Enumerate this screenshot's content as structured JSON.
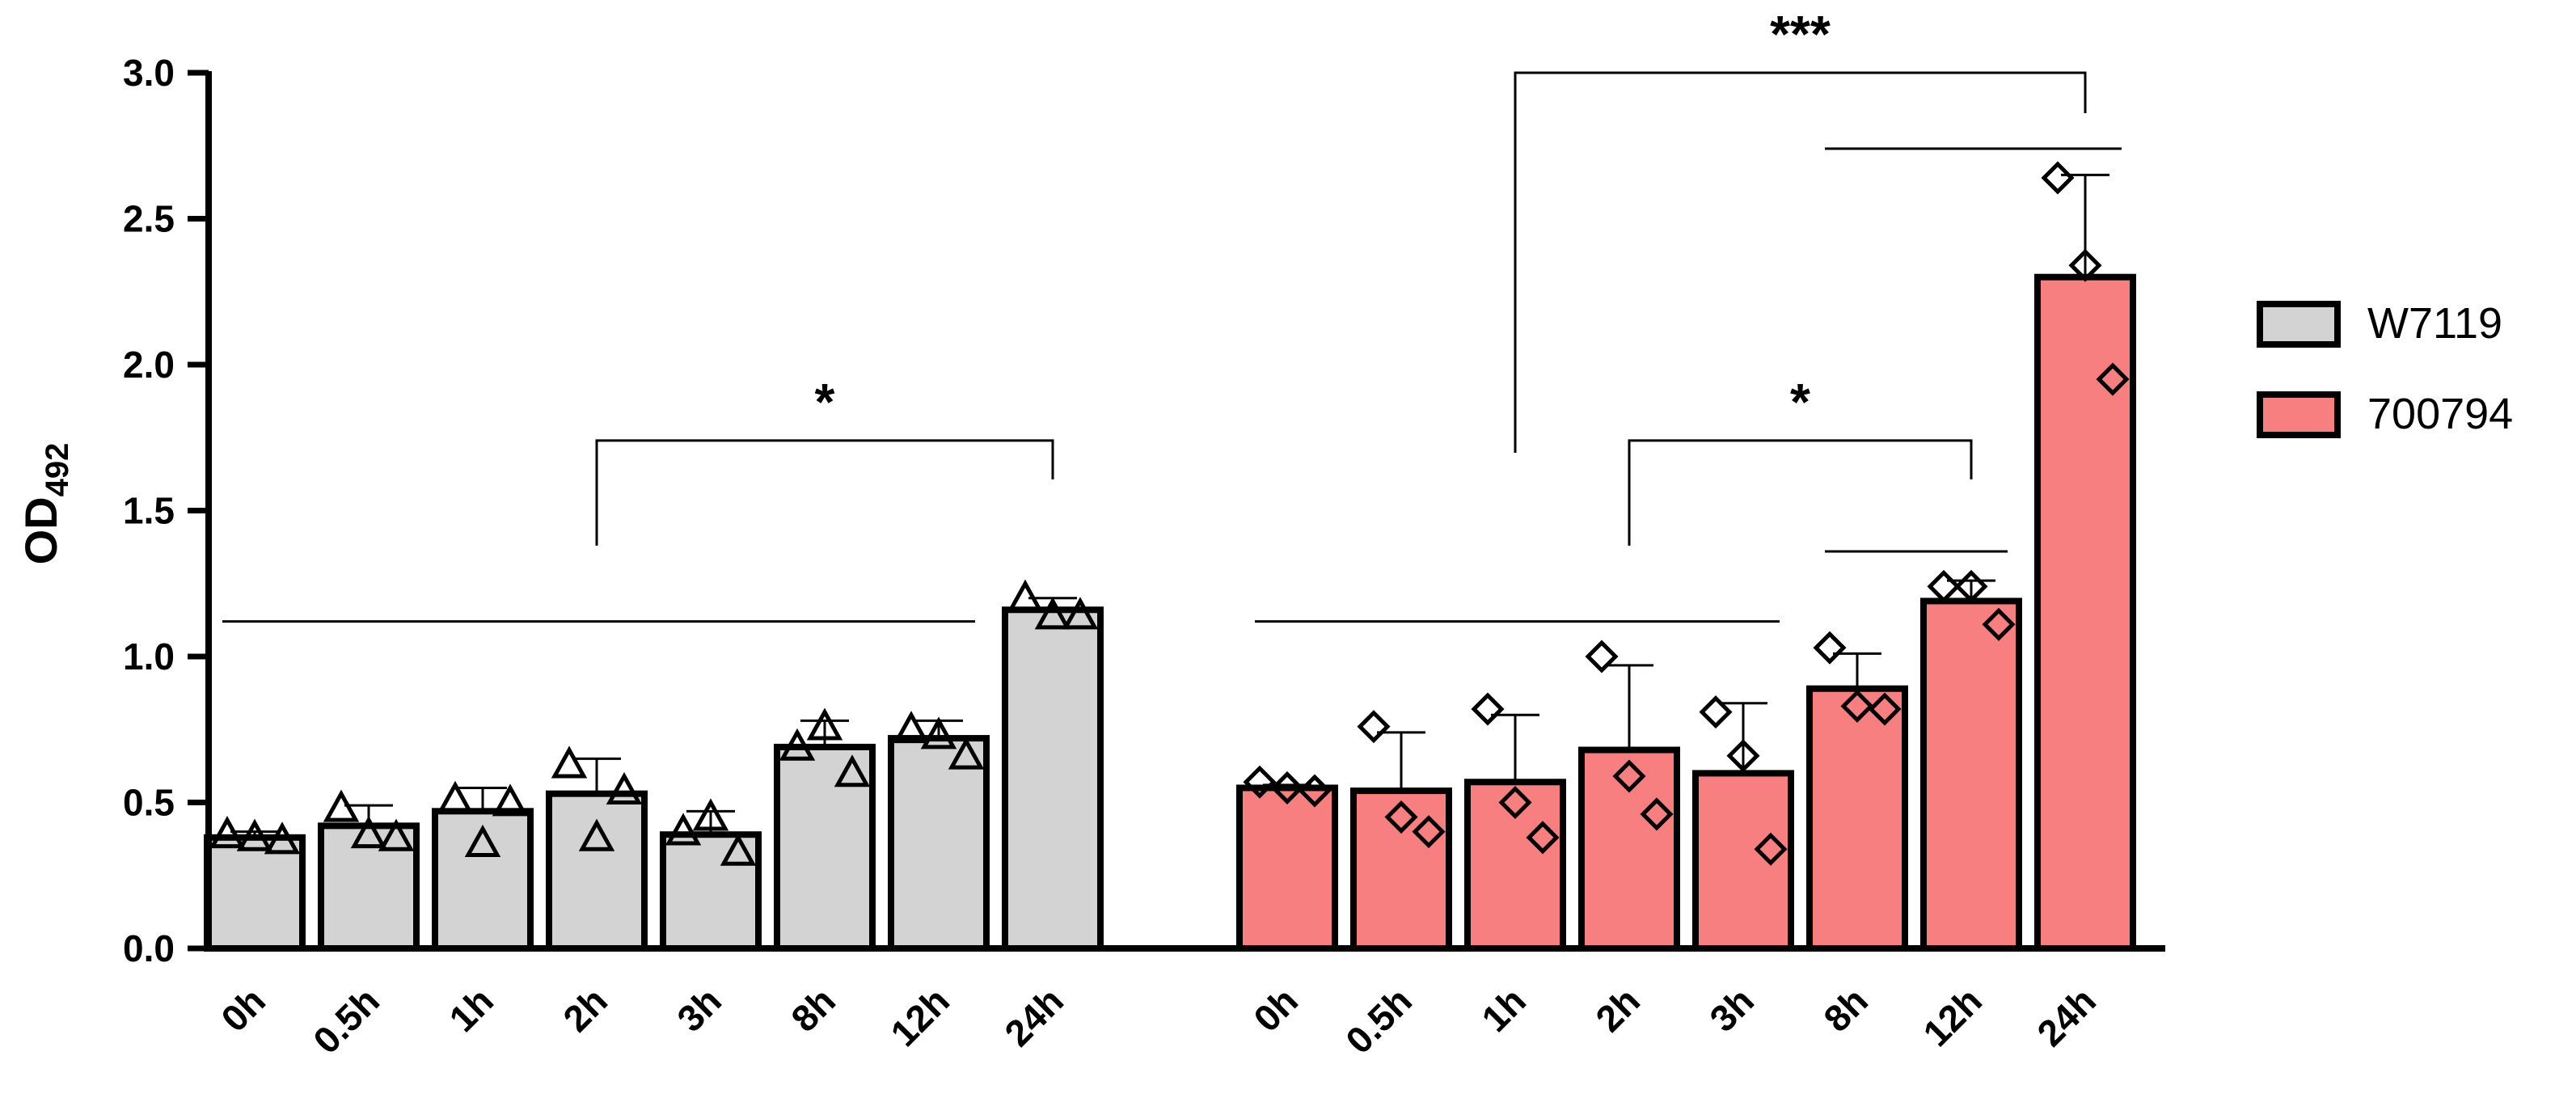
{
  "chart_data": {
    "type": "bar",
    "ylabel_main": "OD",
    "ylabel_sub": "492",
    "xlabel": "",
    "ylim": [
      0,
      3.0
    ],
    "yticks": [
      "0.0",
      "0.5",
      "1.0",
      "1.5",
      "2.0",
      "2.5",
      "3.0"
    ],
    "categories": [
      "0h",
      "0.5h",
      "1h",
      "2h",
      "3h",
      "8h",
      "12h",
      "24h"
    ],
    "legend_position": "right",
    "series": [
      {
        "name": "W7119",
        "color": "#d3d3d3",
        "marker": "triangle",
        "values": [
          0.38,
          0.42,
          0.47,
          0.53,
          0.39,
          0.69,
          0.72,
          1.16
        ],
        "error": [
          0.02,
          0.07,
          0.08,
          0.12,
          0.08,
          0.09,
          0.06,
          0.04
        ],
        "points": [
          [
            0.39,
            0.38,
            0.37
          ],
          [
            0.48,
            0.39,
            0.38
          ],
          [
            0.51,
            0.36,
            0.5
          ],
          [
            0.63,
            0.38,
            0.54
          ],
          [
            0.4,
            0.45,
            0.33
          ],
          [
            0.69,
            0.76,
            0.6
          ],
          [
            0.75,
            0.73,
            0.66
          ],
          [
            1.2,
            1.14,
            1.14
          ]
        ]
      },
      {
        "name": "700794",
        "color": "#f77f7f",
        "marker": "diamond",
        "values": [
          0.55,
          0.54,
          0.57,
          0.68,
          0.6,
          0.89,
          1.19,
          2.3
        ],
        "error": [
          0.01,
          0.2,
          0.23,
          0.29,
          0.24,
          0.12,
          0.07,
          0.35
        ],
        "points": [
          [
            0.57,
            0.55,
            0.54
          ],
          [
            0.76,
            0.45,
            0.4
          ],
          [
            0.82,
            0.5,
            0.38
          ],
          [
            1.0,
            0.59,
            0.46
          ],
          [
            0.81,
            0.66,
            0.34
          ],
          [
            1.03,
            0.83,
            0.82
          ],
          [
            1.24,
            1.24,
            1.11
          ],
          [
            2.64,
            2.34,
            1.95
          ]
        ]
      }
    ],
    "annotations": {
      "brackets": [
        {
          "series": 0,
          "from": 3,
          "to": 7,
          "y": 1.74,
          "label": "*"
        },
        {
          "series": 1,
          "from": 3,
          "to": 6,
          "y": 1.74,
          "label": "*"
        },
        {
          "series": 1,
          "from": 2,
          "to": 7,
          "y": 3.0,
          "label": "***"
        }
      ],
      "lines": [
        {
          "series": 0,
          "from": 0,
          "to": 6,
          "y": 1.12
        },
        {
          "series": 1,
          "from": 0,
          "to": 4,
          "y": 1.12
        },
        {
          "series": 1,
          "from": 5,
          "to": 6,
          "y": 1.36
        },
        {
          "series": 1,
          "from": 5,
          "to": 7,
          "y": 2.74
        }
      ]
    }
  }
}
